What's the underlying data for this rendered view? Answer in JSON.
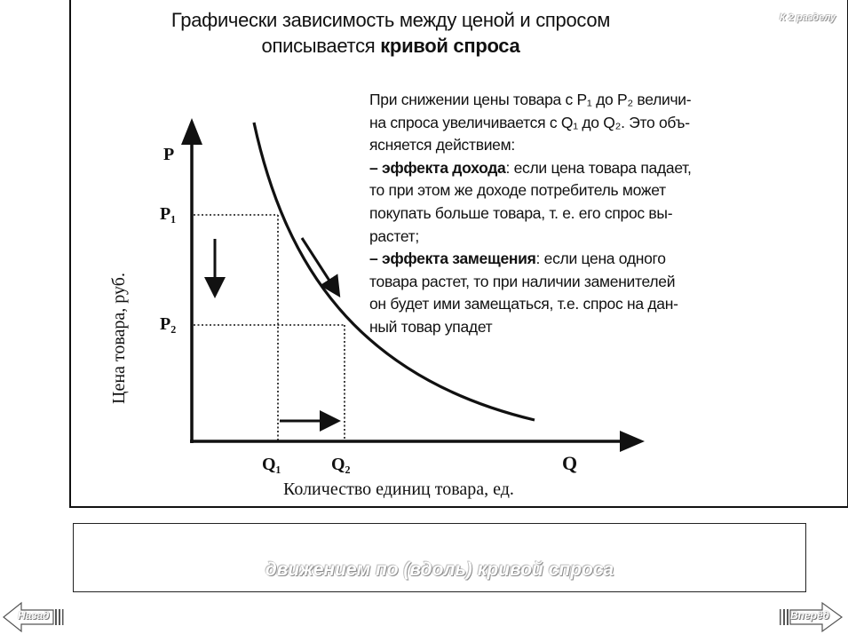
{
  "slide": {
    "title_line1": "Графически зависимость между ценой и спросом",
    "title_line2_plain": "описывается ",
    "title_line2_bold": "кривой спроса",
    "section_link": "К 2 разделу"
  },
  "explanation": {
    "line1": "При снижении цены товара с P₁ до P₂ величи-",
    "line2": "на спроса увеличивается с Q₁ до Q₂. Это объ-",
    "line3": "ясняется действием:",
    "income_bold": "– эффекта дохода",
    "income_rest": ": если цена товара падает,",
    "line5": "то  при этом же доходе потребитель может",
    "line6": "покупать больше товара, т. е. его спрос вы-",
    "line7": "растет;",
    "subst_bold": "– эффекта замещения",
    "subst_rest": ": если цена одного",
    "line9": "товара растет, то при наличии заменителей",
    "line10": "он будет ими замещаться, т.е. спрос на дан-",
    "line11": "ный товар упадет"
  },
  "diagram": {
    "y_axis_symbol": "P",
    "x_axis_symbol": "Q",
    "p1_label": "P₁",
    "p2_label": "P₂",
    "q1_label": "Q₁",
    "q2_label": "Q₂",
    "y_axis_title": "Цена товара, руб.",
    "x_axis_title": "Количество единиц товара, ед."
  },
  "answer": {
    "text": "движением по (вдоль) кривой спроса"
  },
  "nav": {
    "back_label": "Назад",
    "forward_label": "Вперёд"
  },
  "colors": {
    "ink": "#111111",
    "ghost_text": "#ffffff"
  }
}
